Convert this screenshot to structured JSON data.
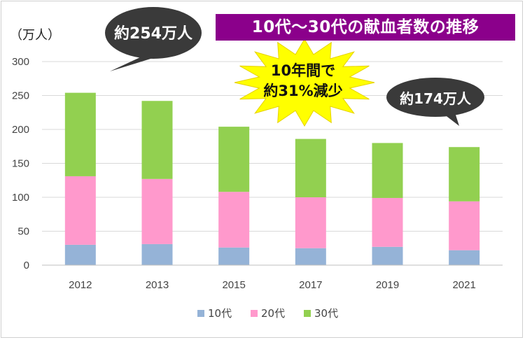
{
  "title": "10代〜30代の献血者数の推移",
  "unit_label": "（万人）",
  "callouts": {
    "start": "約254万人",
    "end": "約174万人",
    "change_line1": "10年間で",
    "change_line2": "約31%減少"
  },
  "colors": {
    "series_10s": "#95b3d7",
    "series_20s": "#ff99cc",
    "series_30s": "#92d050",
    "title_bg": "#8b008b",
    "callout_bg": "#3a3a3a",
    "star_fill": "#ffff00"
  },
  "chart_data": {
    "type": "bar",
    "stacked": true,
    "categories": [
      "2012",
      "2013",
      "2015",
      "2017",
      "2019",
      "2021"
    ],
    "series": [
      {
        "name": "10代",
        "values": [
          30,
          31,
          26,
          25,
          27,
          22
        ]
      },
      {
        "name": "20代",
        "values": [
          101,
          96,
          82,
          75,
          72,
          72
        ]
      },
      {
        "name": "30代",
        "values": [
          123,
          115,
          96,
          86,
          81,
          80
        ]
      }
    ],
    "ylim": [
      0,
      300
    ],
    "yticks": [
      0,
      50,
      100,
      150,
      200,
      250,
      300
    ],
    "ylabel": "（万人）",
    "grid": true,
    "legend": "bottom"
  }
}
